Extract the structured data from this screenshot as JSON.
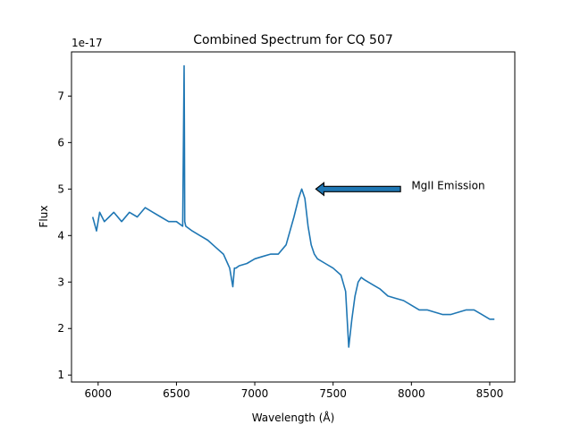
{
  "chart_data": {
    "type": "line",
    "title": "Combined Spectrum for CQ 507",
    "xlabel": "Wavelength (Å)",
    "ylabel": "Flux",
    "y_offset_text": "1e-17",
    "xlim": [
      5830,
      8660
    ],
    "ylim": [
      0.85,
      7.95
    ],
    "x_ticks": [
      6000,
      6500,
      7000,
      7500,
      8000,
      8500
    ],
    "x_tick_labels": [
      "6000",
      "6500",
      "7000",
      "7500",
      "8000",
      "8500"
    ],
    "y_ticks": [
      1,
      2,
      3,
      4,
      5,
      6,
      7
    ],
    "y_tick_labels": [
      "1",
      "2",
      "3",
      "4",
      "5",
      "6",
      "7"
    ],
    "grid": false,
    "series": [
      {
        "color": "#1f77b4",
        "x": [
          5965,
          5990,
          6010,
          6040,
          6070,
          6100,
          6150,
          6200,
          6250,
          6300,
          6350,
          6400,
          6450,
          6500,
          6540,
          6549,
          6551,
          6553,
          6560,
          6600,
          6650,
          6700,
          6750,
          6800,
          6840,
          6860,
          6870,
          6880,
          6900,
          6950,
          7000,
          7050,
          7100,
          7150,
          7200,
          7250,
          7280,
          7300,
          7320,
          7340,
          7360,
          7380,
          7400,
          7450,
          7500,
          7550,
          7580,
          7600,
          7620,
          7640,
          7660,
          7680,
          7700,
          7750,
          7800,
          7850,
          7900,
          7950,
          8000,
          8050,
          8100,
          8150,
          8200,
          8250,
          8300,
          8350,
          8400,
          8450,
          8500,
          8530
        ],
        "y": [
          4.4,
          4.1,
          4.5,
          4.3,
          4.4,
          4.5,
          4.3,
          4.5,
          4.4,
          4.6,
          4.5,
          4.4,
          4.3,
          4.3,
          4.2,
          7.65,
          6.0,
          4.3,
          4.2,
          4.1,
          4.0,
          3.9,
          3.75,
          3.6,
          3.3,
          2.9,
          3.3,
          3.3,
          3.35,
          3.4,
          3.5,
          3.55,
          3.6,
          3.6,
          3.8,
          4.4,
          4.8,
          5.0,
          4.8,
          4.2,
          3.8,
          3.6,
          3.5,
          3.4,
          3.3,
          3.15,
          2.8,
          1.6,
          2.2,
          2.7,
          3.0,
          3.1,
          3.05,
          2.95,
          2.85,
          2.7,
          2.65,
          2.6,
          2.5,
          2.4,
          2.4,
          2.35,
          2.3,
          2.3,
          2.35,
          2.4,
          2.4,
          2.3,
          2.2,
          2.2
        ]
      }
    ],
    "annotation": {
      "text": "MgII Emission",
      "text_x": 8000,
      "text_y": 5.0,
      "arrow_tail_x": 7930,
      "arrow_head_x": 7390,
      "arrow_y": 5.0,
      "arrow_face_color": "#1f77b4",
      "arrow_edge_color": "#000000"
    }
  }
}
